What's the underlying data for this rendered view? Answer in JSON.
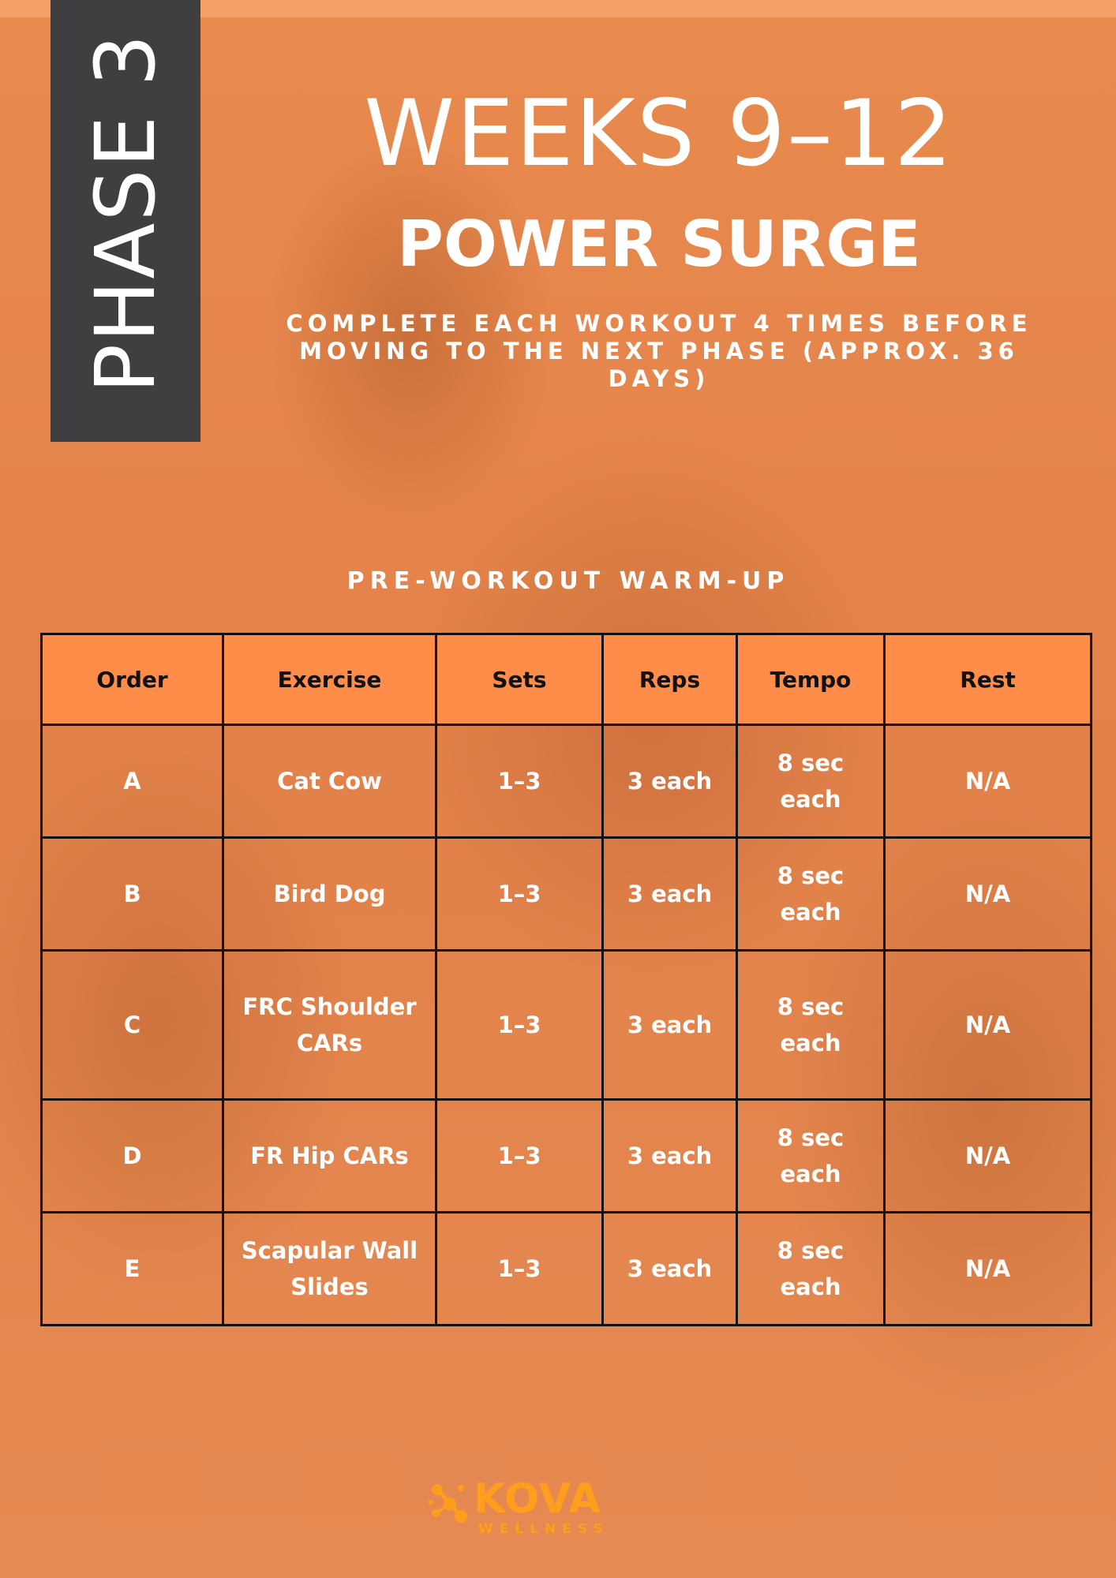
{
  "colors": {
    "background": "#e5864a",
    "banner": "#3f3f42",
    "table_header": "#ff8c48",
    "logo": "#ff9d1c",
    "text": "#ffffff"
  },
  "phase": {
    "label": "PHASE 3"
  },
  "header": {
    "title": "WEEKS 9–12",
    "subtitle": "POWER SURGE",
    "instructions": "COMPLETE EACH WORKOUT 4 TIMES BEFORE MOVING TO THE NEXT PHASE (APPROX. 36 DAYS)"
  },
  "section": {
    "title": "PRE-WORKOUT WARM-UP"
  },
  "table": {
    "columns": [
      "Order",
      "Exercise",
      "Sets",
      "Reps",
      "Tempo",
      "Rest"
    ],
    "rows": [
      {
        "order": "A",
        "exercise": "Cat Cow",
        "sets": "1–3",
        "reps": "3 each",
        "tempo": "8 sec each",
        "rest": "N/A"
      },
      {
        "order": "B",
        "exercise": "Bird Dog",
        "sets": "1–3",
        "reps": "3 each",
        "tempo": "8 sec each",
        "rest": "N/A"
      },
      {
        "order": "C",
        "exercise": "FRC Shoulder CARs",
        "sets": "1–3",
        "reps": "3 each",
        "tempo": "8 sec each",
        "rest": "N/A"
      },
      {
        "order": "D",
        "exercise": "FR Hip CARs",
        "sets": "1–3",
        "reps": "3 each",
        "tempo": "8 sec each",
        "rest": "N/A"
      },
      {
        "order": "E",
        "exercise": "Scapular Wall Slides",
        "sets": "1–3",
        "reps": "3 each",
        "tempo": "8 sec each",
        "rest": "N/A"
      }
    ]
  },
  "logo": {
    "name": "KOVA",
    "tagline": "WELLNESS",
    "icon": "molecule-icon"
  }
}
